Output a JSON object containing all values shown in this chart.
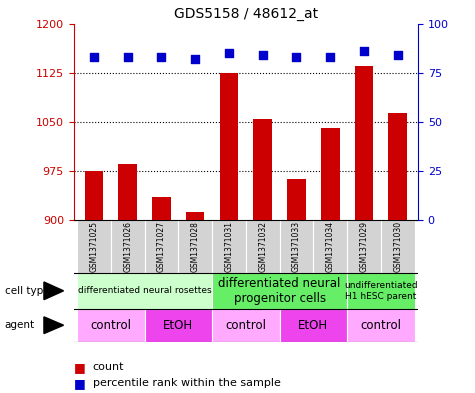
{
  "title": "GDS5158 / 48612_at",
  "samples": [
    "GSM1371025",
    "GSM1371026",
    "GSM1371027",
    "GSM1371028",
    "GSM1371031",
    "GSM1371032",
    "GSM1371033",
    "GSM1371034",
    "GSM1371029",
    "GSM1371030"
  ],
  "counts": [
    975,
    985,
    935,
    912,
    1125,
    1055,
    962,
    1040,
    1135,
    1063
  ],
  "percentiles": [
    83,
    83,
    83,
    82,
    85,
    84,
    83,
    83,
    86,
    84
  ],
  "count_base": 900,
  "ylim_left": [
    900,
    1200
  ],
  "ylim_right": [
    0,
    100
  ],
  "yticks_left": [
    900,
    975,
    1050,
    1125,
    1200
  ],
  "yticks_right": [
    0,
    25,
    50,
    75,
    100
  ],
  "cell_type_groups": [
    {
      "label": "differentiated neural rosettes",
      "start": 0,
      "end": 4,
      "color": "#ccffcc",
      "fontsize": 6.5
    },
    {
      "label": "differentiated neural\nprogenitor cells",
      "start": 4,
      "end": 8,
      "color": "#66ee66",
      "fontsize": 8.5
    },
    {
      "label": "undifferentiated\nH1 hESC parent",
      "start": 8,
      "end": 10,
      "color": "#66ee66",
      "fontsize": 6.5
    }
  ],
  "agent_groups": [
    {
      "label": "control",
      "start": 0,
      "end": 2,
      "color": "#ffaaff"
    },
    {
      "label": "EtOH",
      "start": 2,
      "end": 4,
      "color": "#ee44ee"
    },
    {
      "label": "control",
      "start": 4,
      "end": 6,
      "color": "#ffaaff"
    },
    {
      "label": "EtOH",
      "start": 6,
      "end": 8,
      "color": "#ee44ee"
    },
    {
      "label": "control",
      "start": 8,
      "end": 10,
      "color": "#ffaaff"
    }
  ],
  "bar_color": "#cc0000",
  "dot_color": "#0000cc",
  "bar_width": 0.55,
  "dot_size": 35,
  "background_color": "#ffffff",
  "sample_box_color": "#d3d3d3",
  "left_spine_color": "#cc0000",
  "right_spine_color": "#0000cc"
}
